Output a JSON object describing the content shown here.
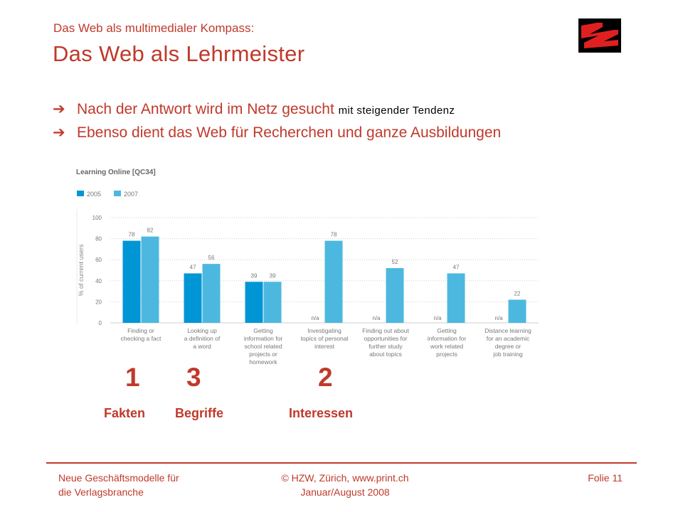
{
  "header": {
    "subtitle": "Das Web als multimedialer Kompass:",
    "title": "Das Web als Lehrmeister"
  },
  "bullets": [
    {
      "icon": "arrow-right-icon",
      "text": "Nach der Antwort wird im Netz gesucht",
      "suffix": "mit steigender Tendenz"
    },
    {
      "icon": "arrow-right-icon",
      "text": "Ebenso dient das Web für Recherchen und ganze Ausbildungen"
    }
  ],
  "chart_data": {
    "type": "bar",
    "title": "Learning Online [QC34]",
    "ylabel": "% of current users",
    "ylim": [
      0,
      100
    ],
    "yticks": [
      0,
      20,
      40,
      60,
      80,
      100
    ],
    "legend_position": "top-left",
    "categories": [
      [
        "Finding or",
        "checking a fact"
      ],
      [
        "Looking up",
        "a definition of",
        "a word"
      ],
      [
        "Getting",
        "information for",
        "school related",
        "projects or",
        "homework"
      ],
      [
        "Investigating",
        "topics of personal",
        "interest"
      ],
      [
        "Finding out about",
        "opportunities for",
        "further study",
        "about topics"
      ],
      [
        "Getting",
        "information for",
        "work related",
        "projects"
      ],
      [
        "Distance learning",
        "for an academic",
        "degree or",
        "job training"
      ]
    ],
    "series": [
      {
        "name": "2005",
        "color": "#0096d6",
        "values": [
          78,
          47,
          39,
          null,
          null,
          null,
          null
        ]
      },
      {
        "name": "2007",
        "color": "#4db8df",
        "values": [
          82,
          56,
          39,
          78,
          52,
          47,
          22
        ]
      }
    ],
    "na_label": "n/a"
  },
  "ranks": [
    {
      "number": "1",
      "label": "Fakten"
    },
    {
      "number": "3",
      "label": "Begriffe"
    },
    {
      "number": "2",
      "label": "Interessen"
    }
  ],
  "footer": {
    "left": [
      "Neue Geschäftsmodelle für",
      "die Verlagsbranche"
    ],
    "center": [
      "© HZW, Zürich, www.print.ch",
      "Januar/August 2008"
    ],
    "right": "Folie 11"
  },
  "colors": {
    "accent": "#c0392b",
    "bar2005": "#0096d6",
    "bar2007": "#4db8df"
  }
}
